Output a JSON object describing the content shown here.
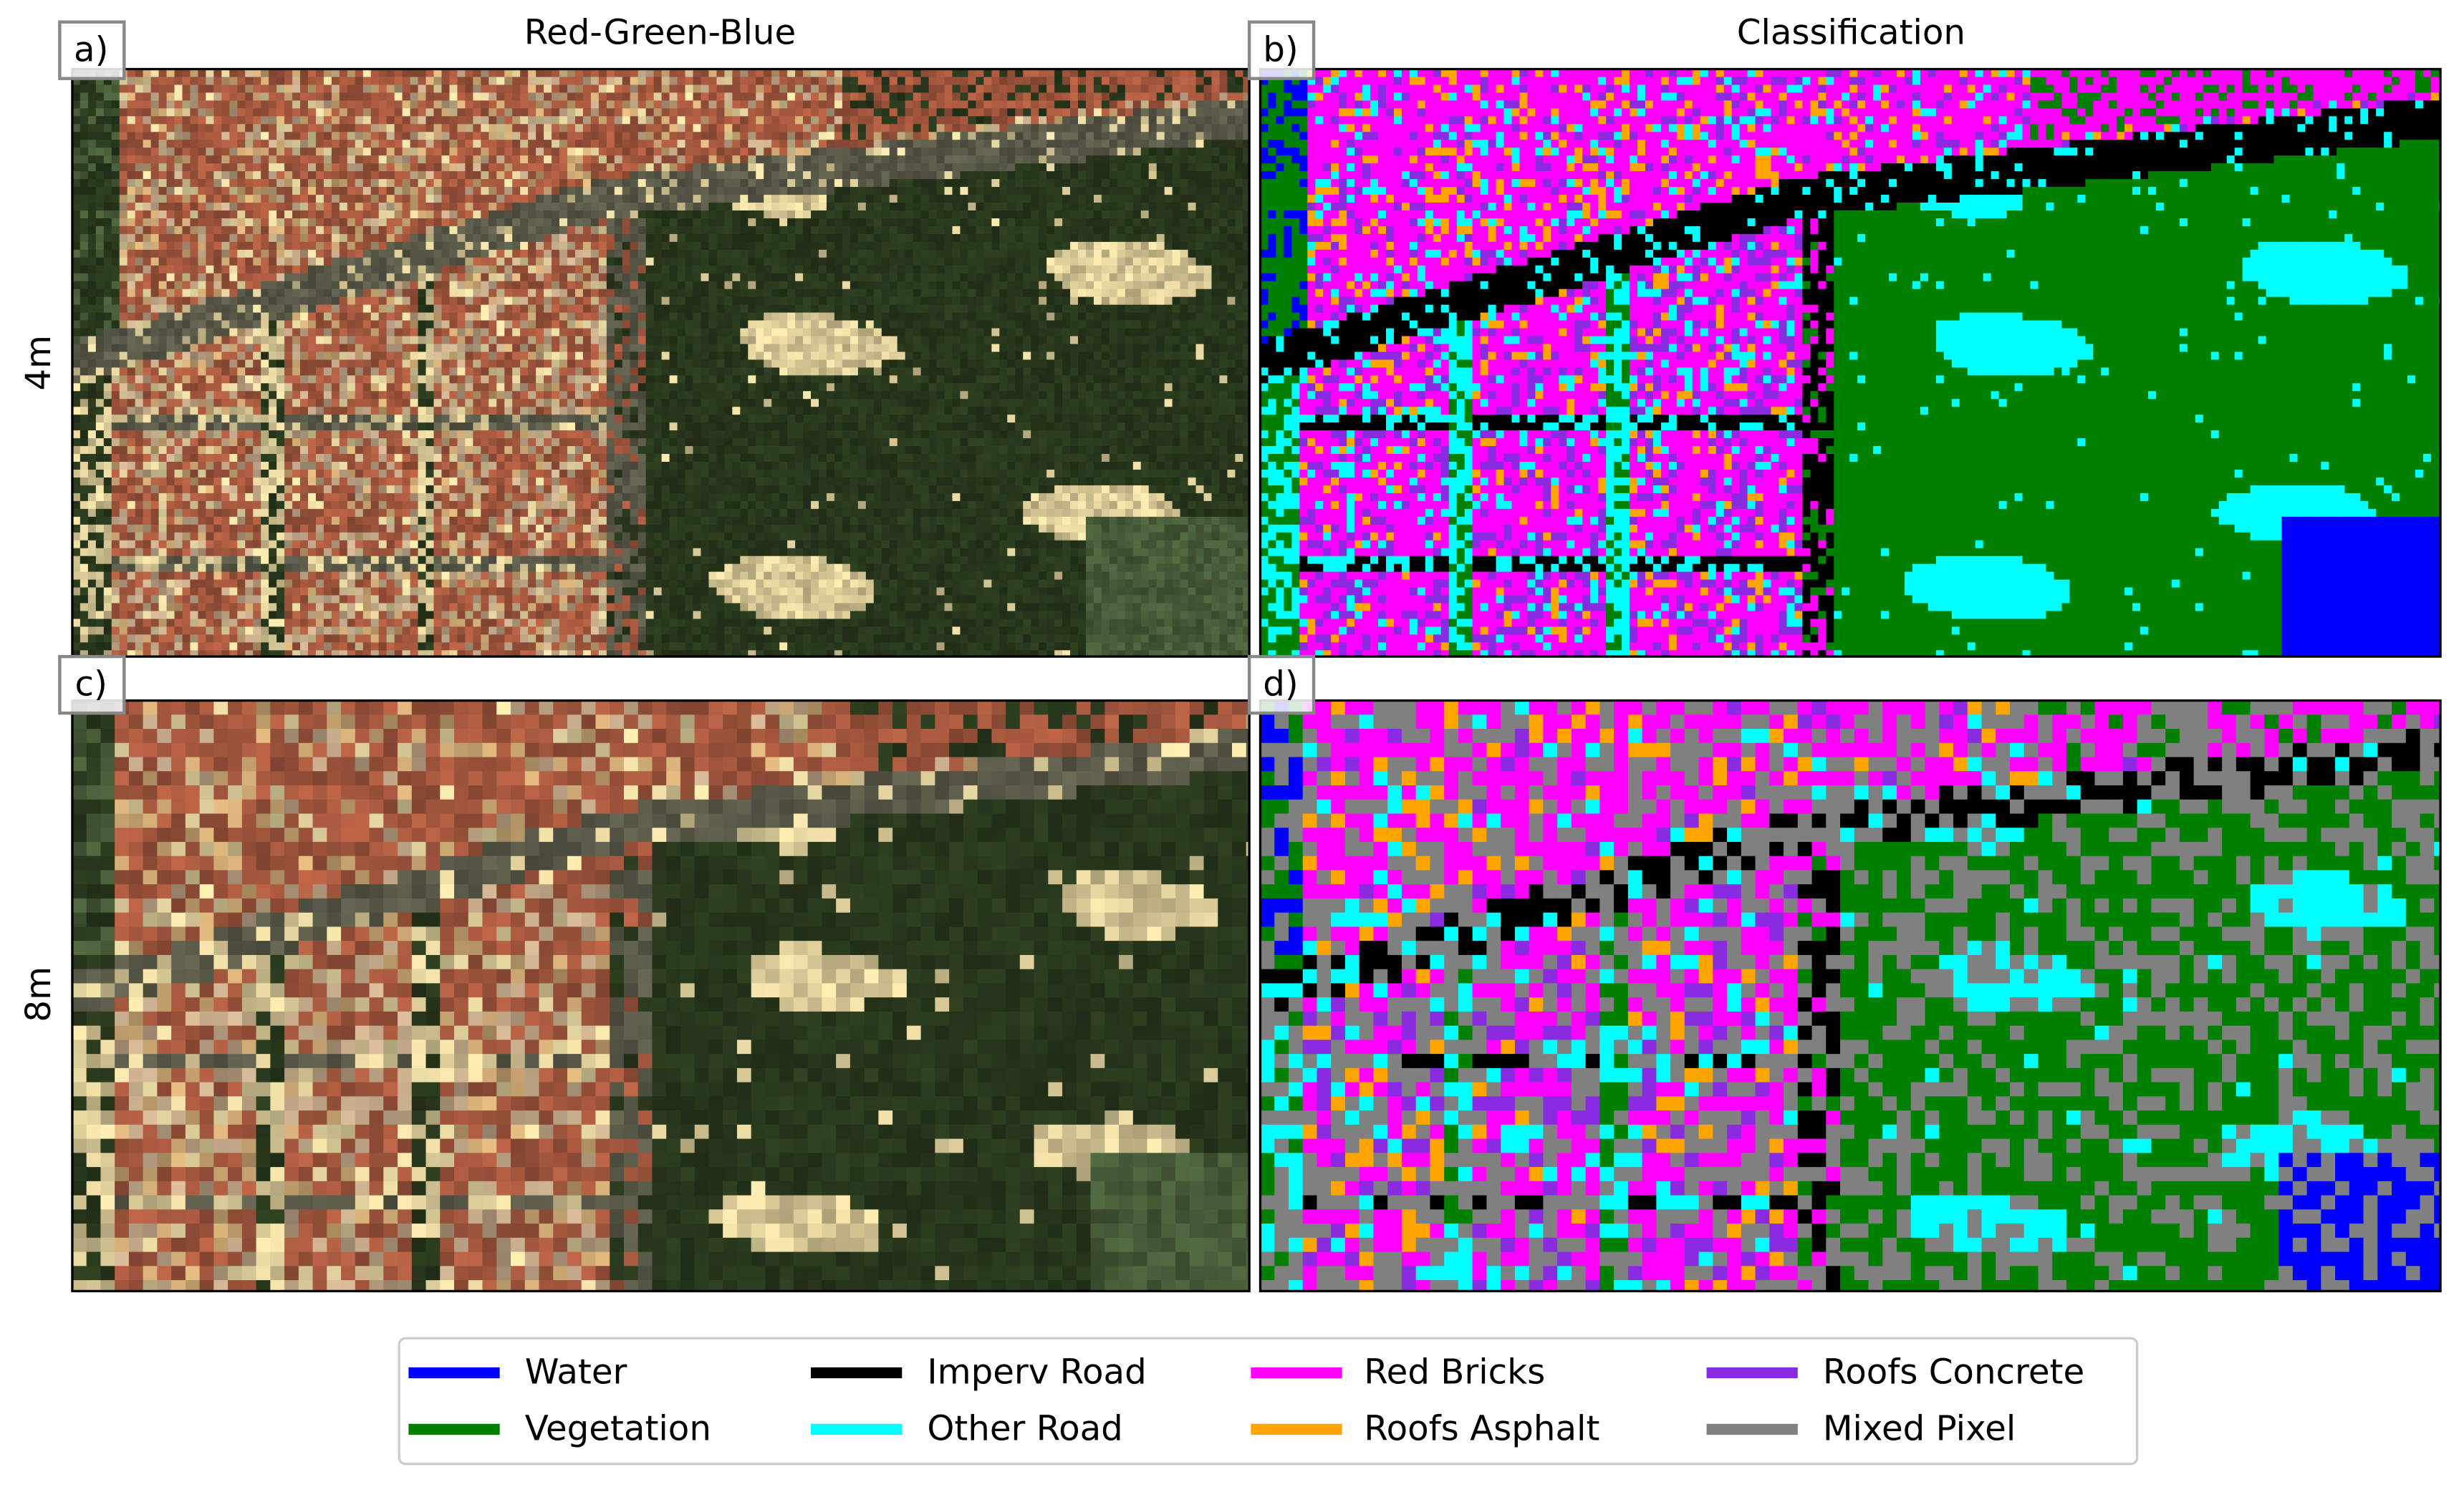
{
  "header": {
    "columns": [
      "Red-Green-Blue",
      "Classification"
    ],
    "rows": [
      "4m",
      "8m"
    ]
  },
  "panels": [
    "a)",
    "b)",
    "c)",
    "d)"
  ],
  "legend": [
    {
      "name": "Water",
      "color": "#0000ff"
    },
    {
      "name": "Vegetation",
      "color": "#008000"
    },
    {
      "name": "Imperv Road",
      "color": "#000000"
    },
    {
      "name": "Other Road",
      "color": "#00ffff"
    },
    {
      "name": "Red Bricks",
      "color": "#ff00ff"
    },
    {
      "name": "Roofs Asphalt",
      "color": "#ffa500"
    },
    {
      "name": "Roofs Concrete",
      "color": "#8a2be2"
    },
    {
      "name": "Mixed Pixel",
      "color": "#808080"
    }
  ]
}
